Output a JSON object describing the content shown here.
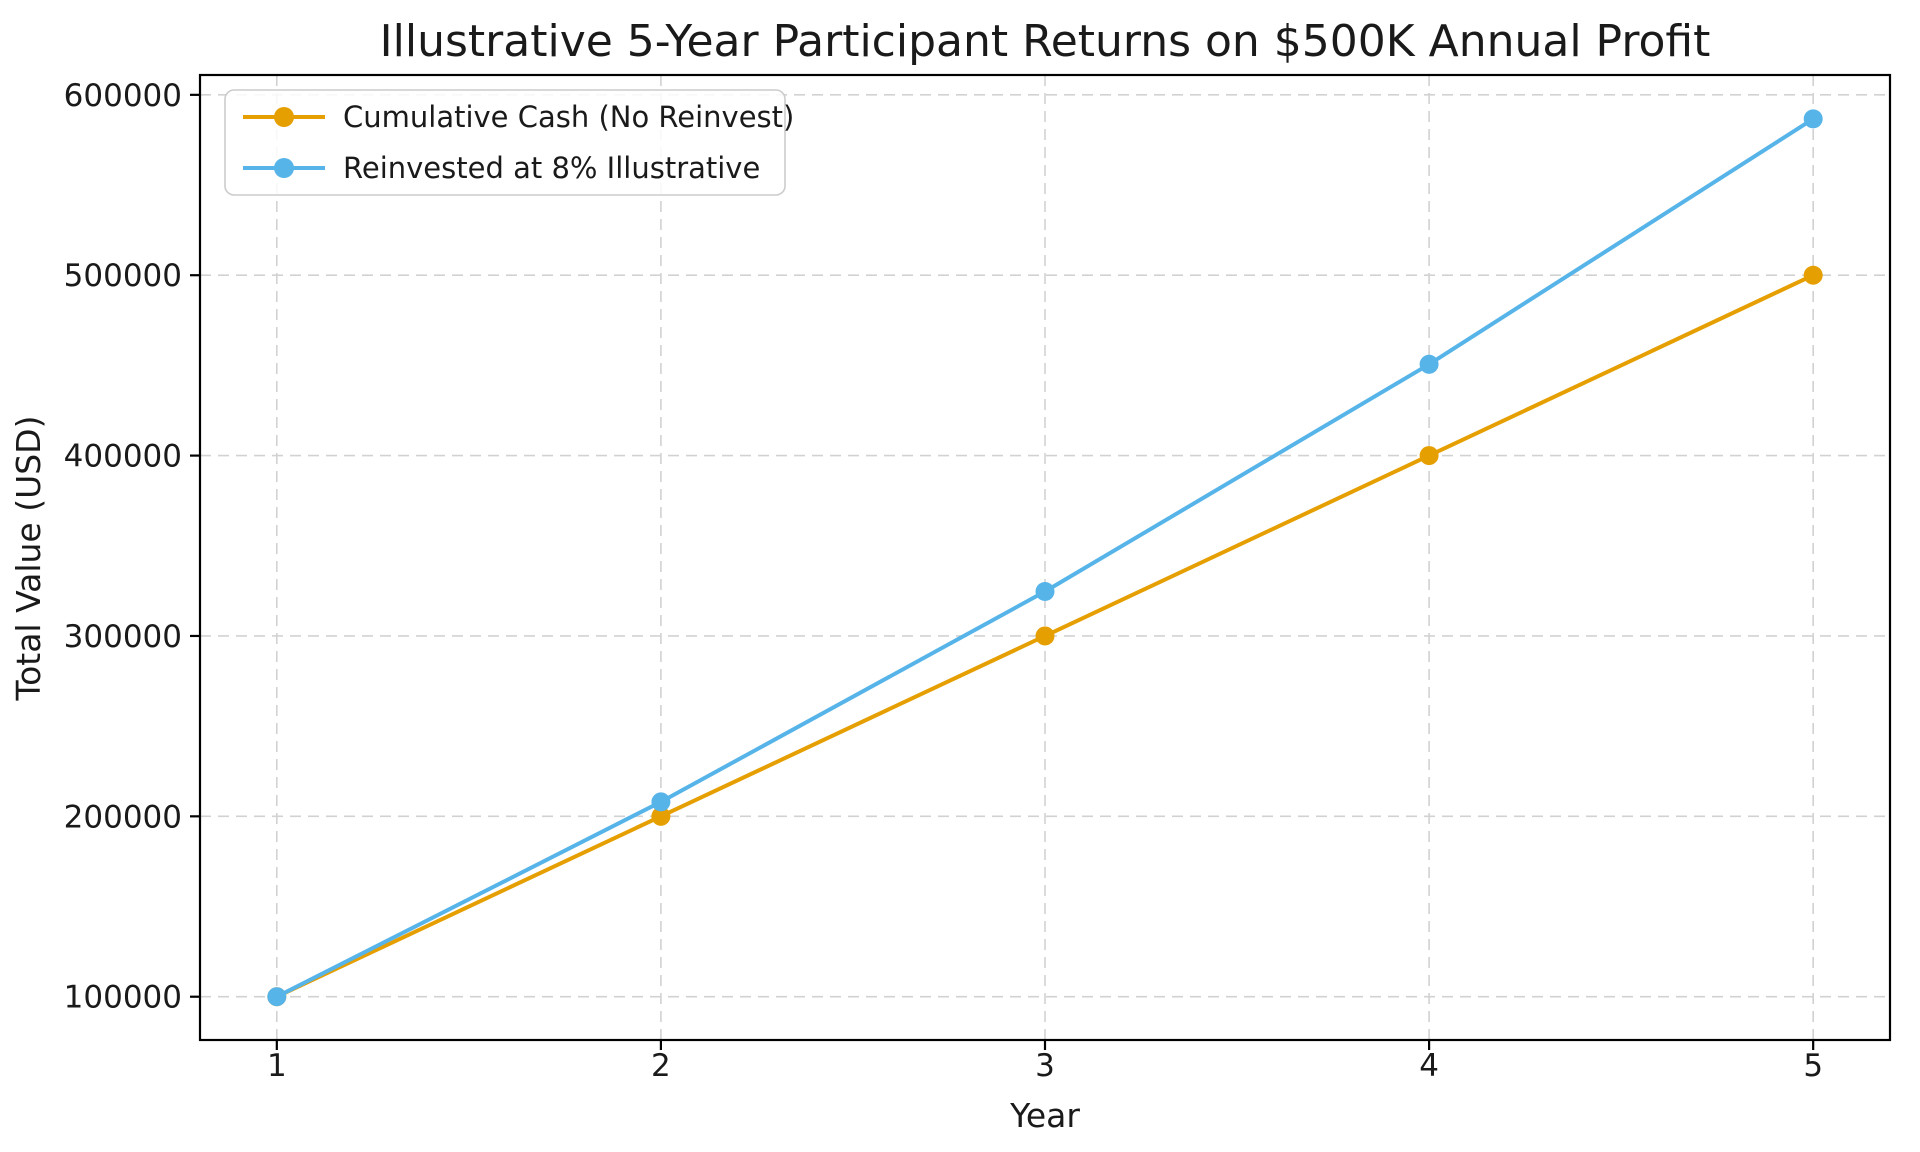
{
  "chart_data": {
    "type": "line",
    "title": "Illustrative 5-Year Participant Returns on $500K Annual Profit",
    "xlabel": "Year",
    "ylabel": "Total Value (USD)",
    "x": [
      1,
      2,
      3,
      4,
      5
    ],
    "xtick_labels": [
      "1",
      "2",
      "3",
      "4",
      "5"
    ],
    "yticks": [
      100000,
      200000,
      300000,
      400000,
      500000,
      600000
    ],
    "ytick_labels": [
      "100000",
      "200000",
      "300000",
      "400000",
      "500000",
      "600000"
    ],
    "xlim": [
      0.8,
      5.2
    ],
    "ylim": [
      76000,
      611000
    ],
    "grid": true,
    "grid_style": "dashed",
    "legend_position": "upper-left",
    "series": [
      {
        "name": "Cumulative Cash (No Reinvest)",
        "color": "#E69F00",
        "values": [
          100000,
          200000,
          300000,
          400000,
          500000
        ]
      },
      {
        "name": "Reinvested at 8% Illustrative",
        "color": "#56B4E9",
        "values": [
          100000,
          208000,
          324640,
          450611,
          586660
        ]
      }
    ]
  }
}
